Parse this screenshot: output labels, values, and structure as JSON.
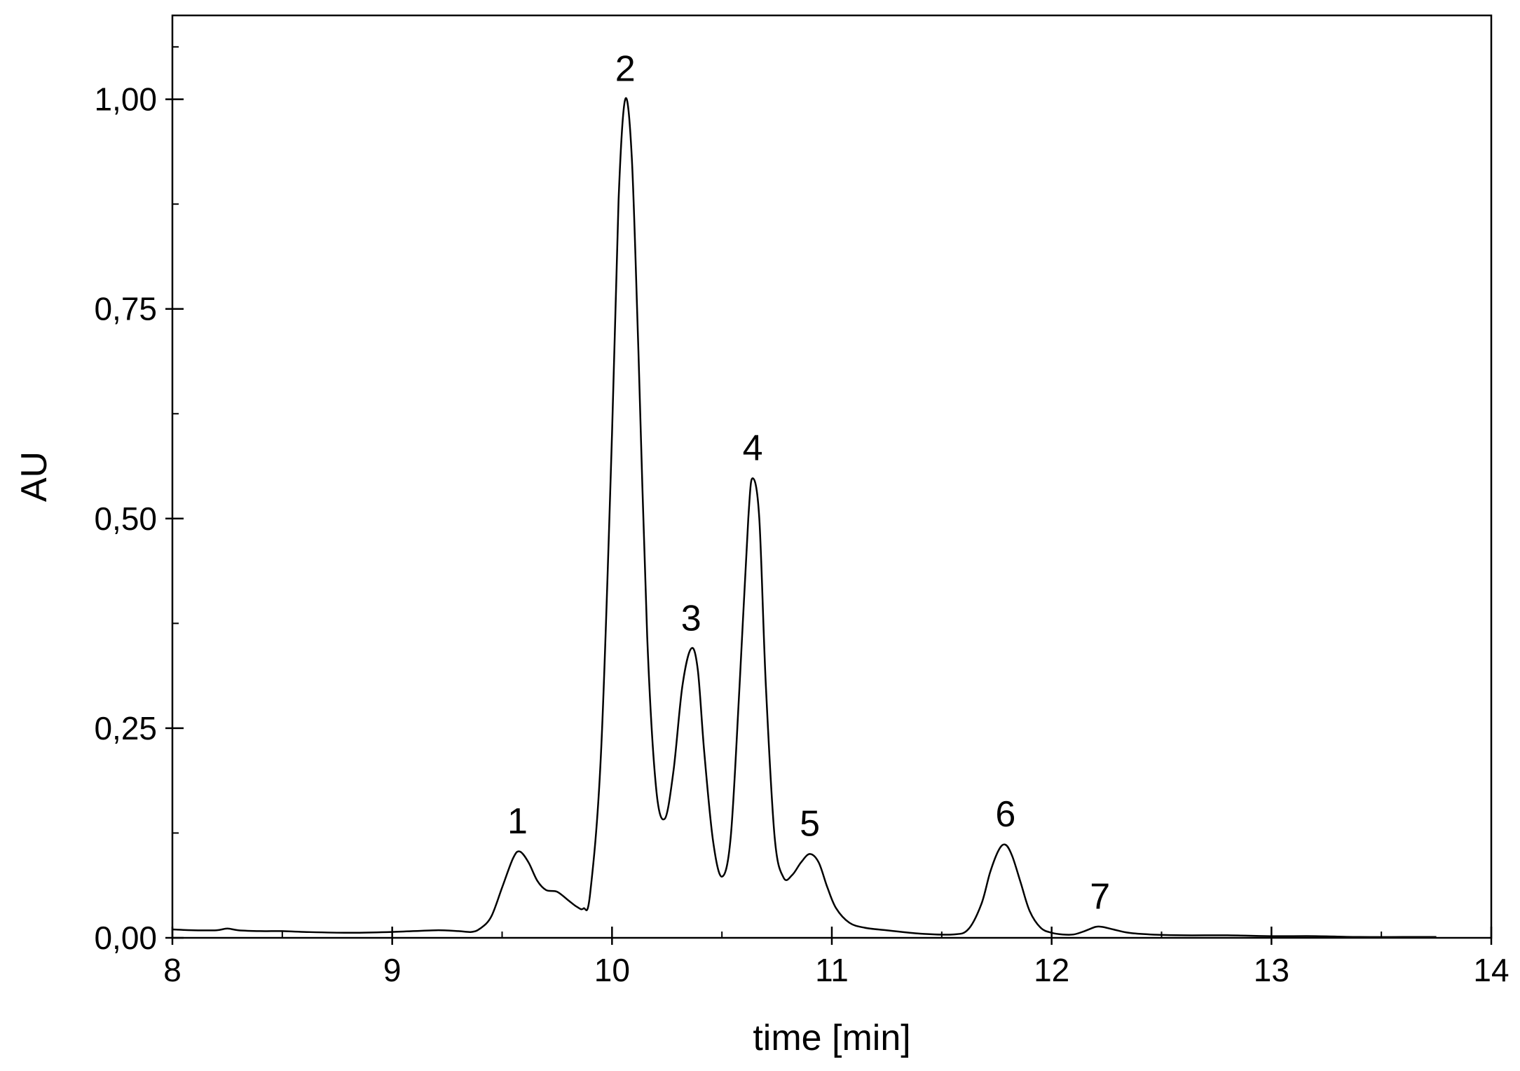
{
  "chart_data": {
    "type": "line",
    "title": "",
    "xlabel": "time [min]",
    "ylabel": "AU",
    "xlim": [
      8,
      14
    ],
    "ylim": [
      0,
      1.1
    ],
    "x_ticks": [
      8,
      9,
      10,
      11,
      12,
      13,
      14
    ],
    "x_tick_labels": [
      "8",
      "9",
      "10",
      "11",
      "12",
      "13",
      "14"
    ],
    "y_ticks": [
      0,
      0.25,
      0.5,
      0.75,
      1.0
    ],
    "y_tick_labels": [
      "0,00",
      "0,25",
      "0,50",
      "0,75",
      "1,00"
    ],
    "grid": false,
    "legend": "none",
    "line_color": "#000000",
    "series": [
      {
        "x": [
          8.0,
          8.1,
          8.2,
          8.25,
          8.3,
          8.4,
          8.5,
          8.6,
          8.8,
          9.0,
          9.2,
          9.3,
          9.36,
          9.4,
          9.45,
          9.5,
          9.55,
          9.58,
          9.62,
          9.66,
          9.7,
          9.75,
          9.8,
          9.84,
          9.87,
          9.9,
          9.95,
          10.0,
          10.03,
          10.06,
          10.09,
          10.12,
          10.16,
          10.2,
          10.24,
          10.28,
          10.32,
          10.36,
          10.39,
          10.42,
          10.46,
          10.5,
          10.54,
          10.58,
          10.62,
          10.64,
          10.67,
          10.7,
          10.74,
          10.78,
          10.82,
          10.86,
          10.9,
          10.94,
          10.98,
          11.02,
          11.08,
          11.15,
          11.25,
          11.4,
          11.55,
          11.62,
          11.68,
          11.72,
          11.76,
          11.79,
          11.82,
          11.86,
          11.9,
          11.95,
          12.0,
          12.05,
          12.1,
          12.15,
          12.2,
          12.23,
          12.28,
          12.35,
          12.45,
          12.6,
          12.8,
          13.0,
          13.2,
          13.4,
          13.6,
          13.75
        ],
        "values": [
          0.01,
          0.009,
          0.009,
          0.011,
          0.009,
          0.008,
          0.008,
          0.007,
          0.006,
          0.007,
          0.009,
          0.008,
          0.007,
          0.011,
          0.025,
          0.06,
          0.095,
          0.103,
          0.09,
          0.068,
          0.057,
          0.055,
          0.045,
          0.037,
          0.035,
          0.052,
          0.22,
          0.6,
          0.88,
          1.0,
          0.93,
          0.7,
          0.36,
          0.18,
          0.142,
          0.2,
          0.3,
          0.345,
          0.32,
          0.22,
          0.115,
          0.073,
          0.12,
          0.3,
          0.5,
          0.548,
          0.5,
          0.3,
          0.12,
          0.072,
          0.075,
          0.09,
          0.1,
          0.09,
          0.06,
          0.035,
          0.018,
          0.012,
          0.009,
          0.005,
          0.004,
          0.01,
          0.04,
          0.078,
          0.105,
          0.111,
          0.098,
          0.065,
          0.032,
          0.012,
          0.006,
          0.004,
          0.004,
          0.008,
          0.013,
          0.013,
          0.01,
          0.006,
          0.004,
          0.003,
          0.003,
          0.002,
          0.002,
          0.001,
          0.001,
          0.001
        ]
      }
    ],
    "annotations": [
      {
        "text": "1",
        "x": 9.57,
        "y": 0.103
      },
      {
        "text": "2",
        "x": 10.06,
        "y": 1.0
      },
      {
        "text": "3",
        "x": 10.36,
        "y": 0.345
      },
      {
        "text": "4",
        "x": 10.64,
        "y": 0.548
      },
      {
        "text": "5",
        "x": 10.9,
        "y": 0.1
      },
      {
        "text": "6",
        "x": 11.79,
        "y": 0.111
      },
      {
        "text": "7",
        "x": 12.22,
        "y": 0.013
      }
    ]
  }
}
